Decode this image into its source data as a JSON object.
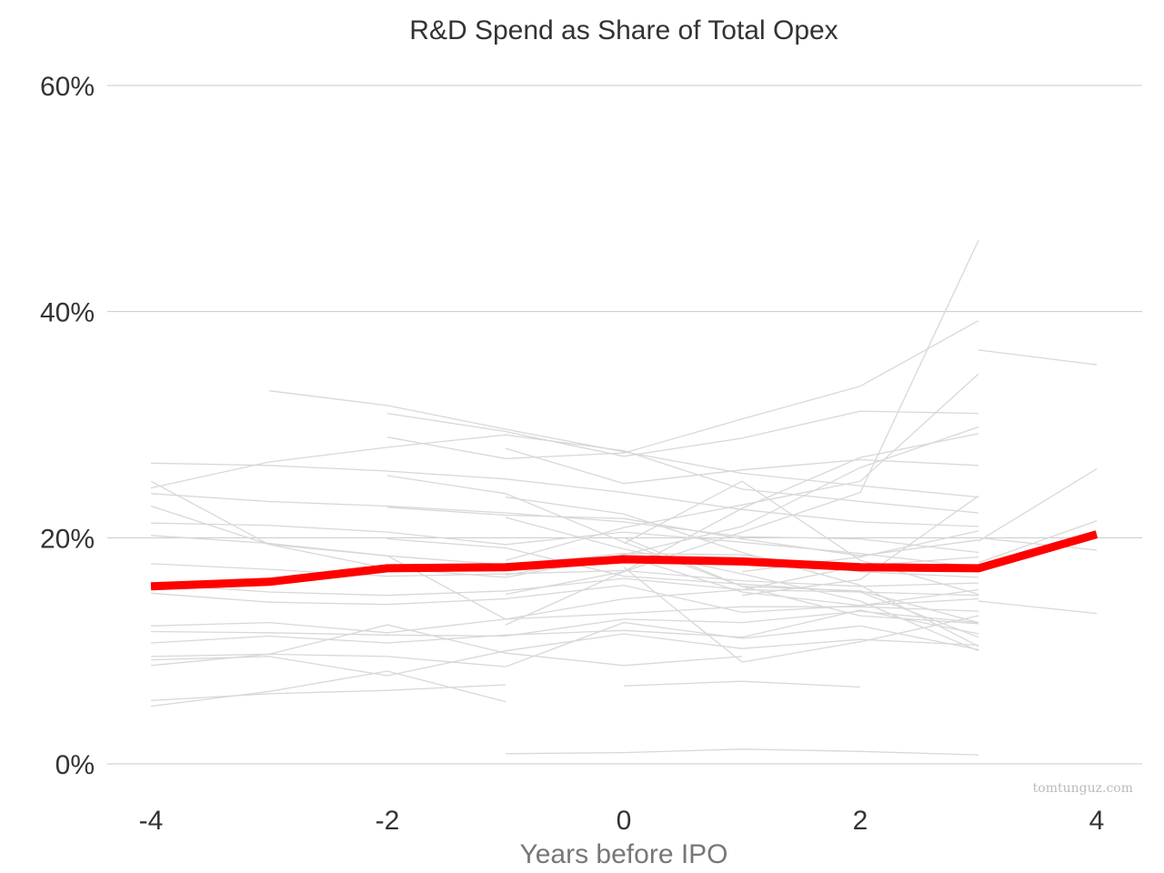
{
  "chart_data": {
    "type": "line",
    "title": "R&D Spend as Share of Total Opex",
    "xlabel": "Years before IPO",
    "ylabel": "",
    "xlim": [
      -4,
      4
    ],
    "ylim": [
      0,
      0.6
    ],
    "x_ticks": [
      -4,
      -2,
      0,
      2,
      4
    ],
    "x_tick_labels": [
      "-4",
      "-2",
      "0",
      "2",
      "4"
    ],
    "y_ticks": [
      0,
      0.2,
      0.4,
      0.6
    ],
    "y_tick_labels": [
      "0%",
      "20%",
      "40%",
      "60%"
    ],
    "grid": "horizontal",
    "legend": "none",
    "annotation": "tomtunguz.com",
    "colors": {
      "highlight": "#ff0000",
      "peer": "#d8d8d8",
      "grid": "#c8c8c8"
    },
    "highlight_series": {
      "x": [
        -4,
        -3,
        -2,
        -1,
        0,
        1,
        2,
        3,
        4
      ],
      "values": [
        0.157,
        0.161,
        0.173,
        0.174,
        0.181,
        0.179,
        0.174,
        0.173,
        0.203
      ]
    },
    "peer_series": [
      {
        "x": [
          -1,
          0,
          1,
          2,
          3
        ],
        "values": [
          0.009,
          0.01,
          0.013,
          0.011,
          0.008
        ]
      },
      {
        "x": [
          -4,
          -3,
          -2,
          -1
        ],
        "values": [
          0.051,
          0.064,
          0.082,
          0.055
        ]
      },
      {
        "x": [
          -4,
          -3,
          -2,
          -1
        ],
        "values": [
          0.056,
          0.062,
          0.065,
          0.07
        ]
      },
      {
        "x": [
          0,
          1,
          2
        ],
        "values": [
          0.069,
          0.073,
          0.068
        ]
      },
      {
        "x": [
          -4,
          -3,
          -2,
          -1,
          0,
          1
        ],
        "values": [
          0.087,
          0.097,
          0.123,
          0.098,
          0.087,
          0.095
        ]
      },
      {
        "x": [
          -4,
          -3,
          -2,
          -1,
          0,
          1,
          2,
          3
        ],
        "values": [
          0.092,
          0.095,
          0.078,
          0.1,
          0.115,
          0.102,
          0.11,
          0.105
        ]
      },
      {
        "x": [
          -4,
          -3,
          -2,
          -1,
          0,
          1,
          2,
          3
        ],
        "values": [
          0.095,
          0.097,
          0.095,
          0.086,
          0.125,
          0.111,
          0.122,
          0.101
        ]
      },
      {
        "x": [
          -4,
          -3,
          -2,
          -1,
          0,
          1,
          2,
          3
        ],
        "values": [
          0.107,
          0.113,
          0.107,
          0.114,
          0.118,
          0.112,
          0.136,
          0.115
        ]
      },
      {
        "x": [
          -4,
          -3,
          -2,
          -1,
          0,
          1,
          2,
          3
        ],
        "values": [
          0.117,
          0.116,
          0.114,
          0.113,
          0.128,
          0.125,
          0.135,
          0.125
        ]
      },
      {
        "x": [
          -4,
          -3,
          -2,
          -1,
          0,
          1,
          2,
          3
        ],
        "values": [
          0.122,
          0.125,
          0.116,
          0.128,
          0.133,
          0.139,
          0.139,
          0.135
        ]
      },
      {
        "x": [
          -4,
          -3,
          -2,
          -1,
          0,
          1,
          2,
          3
        ],
        "values": [
          0.151,
          0.143,
          0.141,
          0.146,
          0.158,
          0.134,
          0.14,
          0.154
        ]
      },
      {
        "x": [
          -4,
          -3,
          -2,
          -1,
          0,
          1,
          2,
          3
        ],
        "values": [
          0.159,
          0.152,
          0.149,
          0.153,
          0.164,
          0.154,
          0.152,
          0.149
        ]
      },
      {
        "x": [
          -4,
          -3,
          -2,
          -1,
          0,
          1,
          2,
          3
        ],
        "values": [
          0.177,
          0.172,
          0.166,
          0.168,
          0.171,
          0.162,
          0.157,
          0.16
        ]
      },
      {
        "x": [
          -4,
          -3,
          -2,
          -1,
          0,
          1,
          2,
          3
        ],
        "values": [
          0.202,
          0.195,
          0.184,
          0.176,
          0.186,
          0.185,
          0.17,
          0.165
        ]
      },
      {
        "x": [
          -4,
          -3,
          -2,
          -1,
          0,
          1,
          2,
          3
        ],
        "values": [
          0.213,
          0.211,
          0.205,
          0.194,
          0.205,
          0.196,
          0.186,
          0.174
        ]
      },
      {
        "x": [
          -4,
          -3,
          -2,
          -1,
          0,
          1,
          2,
          3
        ],
        "values": [
          0.228,
          0.194,
          0.173,
          0.165,
          0.184,
          0.152,
          0.14,
          0.146
        ]
      },
      {
        "x": [
          -4,
          -3,
          -2,
          -1,
          0,
          1,
          2,
          3
        ],
        "values": [
          0.239,
          0.232,
          0.228,
          0.222,
          0.214,
          0.201,
          0.199,
          0.187
        ]
      },
      {
        "x": [
          -4,
          -3,
          -2,
          -1,
          0,
          1,
          2,
          3
        ],
        "values": [
          0.25,
          0.194,
          0.184,
          0.128,
          0.146,
          0.154,
          0.175,
          0.183
        ]
      },
      {
        "x": [
          -4,
          -3,
          -2,
          -1,
          0,
          1,
          2,
          3
        ],
        "values": [
          0.266,
          0.264,
          0.259,
          0.252,
          0.24,
          0.225,
          0.214,
          0.21
        ]
      },
      {
        "x": [
          -4,
          -3,
          -2,
          -1,
          0,
          1,
          2,
          3
        ],
        "values": [
          0.244,
          0.267,
          0.28,
          0.291,
          0.277,
          0.243,
          0.232,
          0.222
        ]
      },
      {
        "x": [
          -3,
          -2,
          -1,
          0,
          1,
          2,
          3
        ],
        "values": [
          0.33,
          0.317,
          0.296,
          0.276,
          0.257,
          0.246,
          0.236
        ]
      },
      {
        "x": [
          -2,
          -1,
          0,
          1,
          2,
          3
        ],
        "values": [
          0.31,
          0.294,
          0.272,
          0.288,
          0.312,
          0.31
        ]
      },
      {
        "x": [
          -2,
          -1,
          0,
          1,
          2,
          3
        ],
        "values": [
          0.289,
          0.27,
          0.275,
          0.305,
          0.334,
          0.392
        ]
      },
      {
        "x": [
          -2,
          -1,
          0,
          1,
          2,
          3
        ],
        "values": [
          0.255,
          0.239,
          0.196,
          0.157,
          0.153,
          0.125
        ]
      },
      {
        "x": [
          -2,
          -1,
          0,
          1,
          2,
          3
        ],
        "values": [
          0.227,
          0.22,
          0.217,
          0.199,
          0.184,
          0.198
        ]
      },
      {
        "x": [
          -2,
          -1,
          0,
          1,
          2,
          3
        ],
        "values": [
          0.199,
          0.191,
          0.166,
          0.159,
          0.152,
          0.112
        ]
      },
      {
        "x": [
          -1,
          0,
          1,
          2,
          3
        ],
        "values": [
          0.279,
          0.248,
          0.26,
          0.269,
          0.264
        ]
      },
      {
        "x": [
          -1,
          0,
          1,
          2,
          3
        ],
        "values": [
          0.236,
          0.221,
          0.187,
          0.158,
          0.104
        ]
      },
      {
        "x": [
          -1,
          0,
          1,
          2,
          3
        ],
        "values": [
          0.218,
          0.19,
          0.168,
          0.144,
          0.1
        ]
      },
      {
        "x": [
          -1,
          0,
          1,
          2,
          3
        ],
        "values": [
          0.15,
          0.17,
          0.205,
          0.24,
          0.463
        ]
      },
      {
        "x": [
          -1,
          0,
          1,
          2,
          3
        ],
        "values": [
          0.18,
          0.209,
          0.229,
          0.25,
          0.345
        ]
      },
      {
        "x": [
          -1,
          0,
          1,
          2,
          3
        ],
        "values": [
          0.167,
          0.185,
          0.21,
          0.262,
          0.298
        ]
      },
      {
        "x": [
          -1,
          0,
          1,
          2,
          3
        ],
        "values": [
          0.123,
          0.17,
          0.226,
          0.271,
          0.292
        ]
      },
      {
        "x": [
          0,
          1,
          2,
          3
        ],
        "values": [
          0.2,
          0.157,
          0.131,
          0.124
        ]
      },
      {
        "x": [
          0,
          1,
          2,
          3
        ],
        "values": [
          0.195,
          0.25,
          0.18,
          0.15
        ]
      },
      {
        "x": [
          0,
          1,
          2,
          3
        ],
        "values": [
          0.174,
          0.09,
          0.108,
          0.131
        ]
      },
      {
        "x": [
          1,
          2,
          3
        ],
        "values": [
          0.17,
          0.183,
          0.206
        ]
      },
      {
        "x": [
          1,
          2,
          3
        ],
        "values": [
          0.149,
          0.163,
          0.237
        ]
      },
      {
        "x": [
          3,
          4
        ],
        "values": [
          0.366,
          0.353
        ]
      },
      {
        "x": [
          3,
          4
        ],
        "values": [
          0.197,
          0.261
        ]
      },
      {
        "x": [
          3,
          4
        ],
        "values": [
          0.178,
          0.215
        ]
      },
      {
        "x": [
          3,
          4
        ],
        "values": [
          0.144,
          0.133
        ]
      },
      {
        "x": [
          3,
          4
        ],
        "values": [
          0.2,
          0.189
        ]
      }
    ]
  }
}
